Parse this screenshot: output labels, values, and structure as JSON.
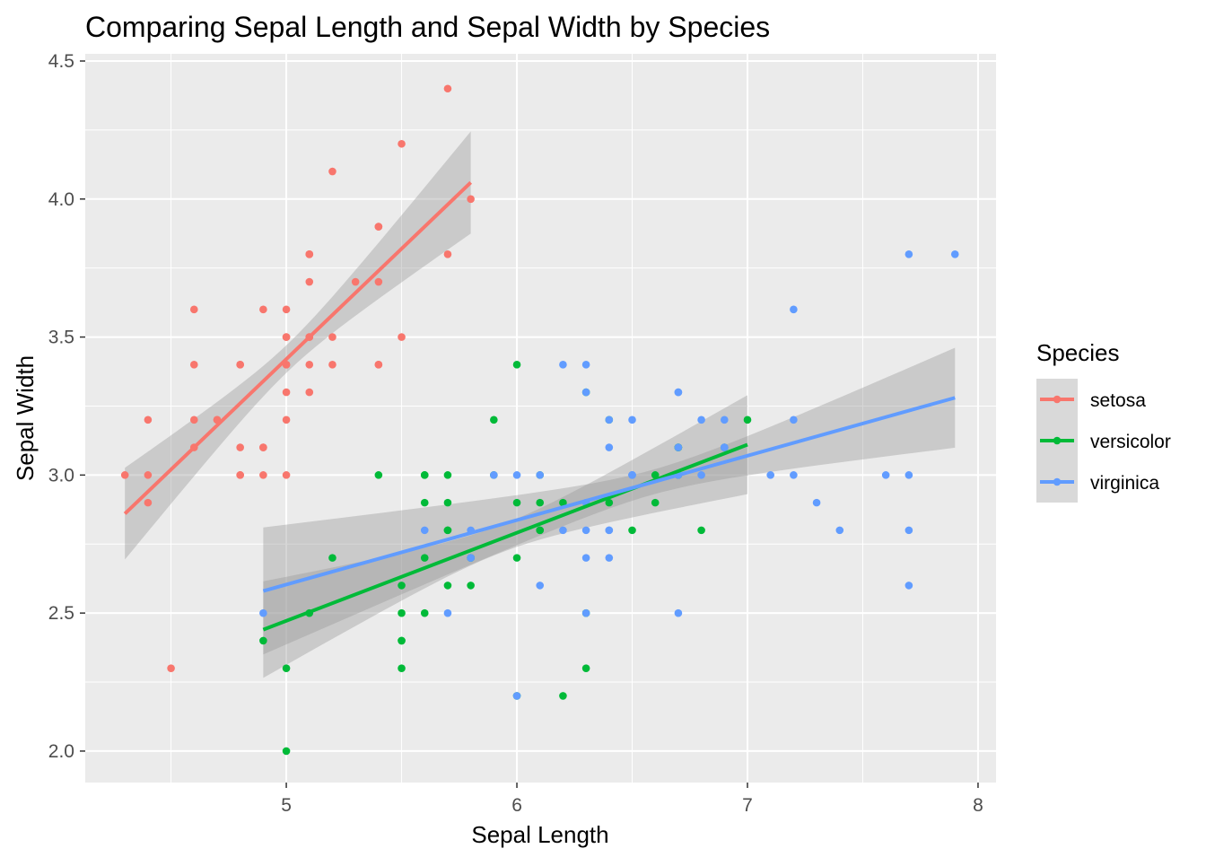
{
  "chart_data": {
    "type": "scatter",
    "title": "Comparing Sepal Length and Sepal Width by Species",
    "xlabel": "Sepal Length",
    "ylabel": "Sepal Width",
    "xlim": [
      4.128,
      8.078
    ],
    "ylim": [
      1.886,
      4.526
    ],
    "x_ticks": [
      5,
      6,
      7,
      8
    ],
    "x_tick_labels": [
      "5",
      "6",
      "7",
      "8"
    ],
    "y_ticks": [
      2.0,
      2.5,
      3.0,
      3.5,
      4.0,
      4.5
    ],
    "y_tick_labels": [
      "2.0",
      "2.5",
      "3.0",
      "3.5",
      "4.0",
      "4.5"
    ],
    "grid": true,
    "legend": {
      "title": "Species",
      "placement": "right"
    },
    "series": [
      {
        "name": "setosa",
        "color": "#F8766D",
        "points": [
          [
            5.1,
            3.5
          ],
          [
            4.9,
            3.0
          ],
          [
            4.7,
            3.2
          ],
          [
            4.6,
            3.1
          ],
          [
            5.0,
            3.6
          ],
          [
            5.4,
            3.9
          ],
          [
            4.6,
            3.4
          ],
          [
            5.0,
            3.4
          ],
          [
            4.4,
            2.9
          ],
          [
            4.9,
            3.1
          ],
          [
            5.4,
            3.7
          ],
          [
            4.8,
            3.4
          ],
          [
            4.8,
            3.0
          ],
          [
            4.3,
            3.0
          ],
          [
            5.8,
            4.0
          ],
          [
            5.7,
            4.4
          ],
          [
            5.4,
            3.9
          ],
          [
            5.1,
            3.5
          ],
          [
            5.7,
            3.8
          ],
          [
            5.1,
            3.8
          ],
          [
            5.4,
            3.4
          ],
          [
            5.1,
            3.7
          ],
          [
            4.6,
            3.6
          ],
          [
            5.1,
            3.3
          ],
          [
            4.8,
            3.4
          ],
          [
            5.0,
            3.0
          ],
          [
            5.0,
            3.4
          ],
          [
            5.2,
            3.5
          ],
          [
            5.2,
            3.4
          ],
          [
            4.7,
            3.2
          ],
          [
            4.8,
            3.1
          ],
          [
            5.4,
            3.4
          ],
          [
            5.2,
            4.1
          ],
          [
            5.5,
            4.2
          ],
          [
            4.9,
            3.1
          ],
          [
            5.0,
            3.2
          ],
          [
            5.5,
            3.5
          ],
          [
            4.9,
            3.6
          ],
          [
            4.4,
            3.0
          ],
          [
            5.1,
            3.4
          ],
          [
            5.0,
            3.5
          ],
          [
            4.5,
            2.3
          ],
          [
            4.4,
            3.2
          ],
          [
            5.0,
            3.5
          ],
          [
            5.1,
            3.8
          ],
          [
            4.8,
            3.0
          ],
          [
            5.1,
            3.8
          ],
          [
            4.6,
            3.2
          ],
          [
            5.3,
            3.7
          ],
          [
            5.0,
            3.3
          ]
        ],
        "fit": {
          "x": [
            4.3,
            5.8
          ],
          "y": [
            2.86,
            4.06
          ],
          "band": {
            "x_mean": 5.006,
            "min_half": 0.05,
            "k": 0.0504
          }
        }
      },
      {
        "name": "versicolor",
        "color": "#00BA38",
        "points": [
          [
            7.0,
            3.2
          ],
          [
            6.4,
            3.2
          ],
          [
            6.9,
            3.1
          ],
          [
            5.5,
            2.3
          ],
          [
            6.5,
            2.8
          ],
          [
            5.7,
            2.8
          ],
          [
            6.3,
            3.3
          ],
          [
            4.9,
            2.4
          ],
          [
            6.6,
            2.9
          ],
          [
            5.2,
            2.7
          ],
          [
            5.0,
            2.0
          ],
          [
            5.9,
            3.0
          ],
          [
            6.0,
            2.2
          ],
          [
            6.1,
            2.9
          ],
          [
            5.6,
            2.9
          ],
          [
            6.7,
            3.1
          ],
          [
            5.6,
            3.0
          ],
          [
            5.8,
            2.7
          ],
          [
            6.2,
            2.2
          ],
          [
            5.6,
            2.5
          ],
          [
            5.9,
            3.2
          ],
          [
            6.1,
            2.8
          ],
          [
            6.3,
            2.5
          ],
          [
            6.1,
            2.8
          ],
          [
            6.4,
            2.9
          ],
          [
            6.6,
            3.0
          ],
          [
            6.8,
            2.8
          ],
          [
            6.7,
            3.0
          ],
          [
            6.0,
            2.9
          ],
          [
            5.7,
            2.6
          ],
          [
            5.5,
            2.4
          ],
          [
            5.5,
            2.4
          ],
          [
            5.8,
            2.7
          ],
          [
            6.0,
            2.7
          ],
          [
            5.4,
            3.0
          ],
          [
            6.0,
            3.4
          ],
          [
            6.7,
            3.1
          ],
          [
            6.3,
            2.3
          ],
          [
            5.6,
            3.0
          ],
          [
            5.5,
            2.5
          ],
          [
            5.5,
            2.6
          ],
          [
            6.1,
            3.0
          ],
          [
            5.8,
            2.6
          ],
          [
            5.0,
            2.3
          ],
          [
            5.6,
            2.7
          ],
          [
            5.7,
            3.0
          ],
          [
            5.7,
            2.9
          ],
          [
            6.2,
            2.9
          ],
          [
            5.1,
            2.5
          ],
          [
            5.7,
            2.8
          ]
        ],
        "fit": {
          "x": [
            4.9,
            7.0
          ],
          "y": [
            2.44,
            3.11
          ],
          "band": {
            "x_mean": 5.936,
            "min_half": 0.05,
            "k": 0.0262
          }
        }
      },
      {
        "name": "virginica",
        "color": "#619CFF",
        "points": [
          [
            6.3,
            3.3
          ],
          [
            5.8,
            2.7
          ],
          [
            7.1,
            3.0
          ],
          [
            6.3,
            2.9
          ],
          [
            6.5,
            3.0
          ],
          [
            7.6,
            3.0
          ],
          [
            4.9,
            2.5
          ],
          [
            7.3,
            2.9
          ],
          [
            6.7,
            2.5
          ],
          [
            7.2,
            3.6
          ],
          [
            6.5,
            3.2
          ],
          [
            6.4,
            2.7
          ],
          [
            6.8,
            3.0
          ],
          [
            5.7,
            2.5
          ],
          [
            5.8,
            2.8
          ],
          [
            6.4,
            3.2
          ],
          [
            6.5,
            3.0
          ],
          [
            7.7,
            3.8
          ],
          [
            7.7,
            2.6
          ],
          [
            6.0,
            2.2
          ],
          [
            6.9,
            3.2
          ],
          [
            5.6,
            2.8
          ],
          [
            7.7,
            2.8
          ],
          [
            6.3,
            2.7
          ],
          [
            6.7,
            3.3
          ],
          [
            7.2,
            3.2
          ],
          [
            6.2,
            2.8
          ],
          [
            6.1,
            3.0
          ],
          [
            6.4,
            2.8
          ],
          [
            7.2,
            3.0
          ],
          [
            7.4,
            2.8
          ],
          [
            7.9,
            3.8
          ],
          [
            6.4,
            2.8
          ],
          [
            6.3,
            2.8
          ],
          [
            6.1,
            2.6
          ],
          [
            7.7,
            3.0
          ],
          [
            6.3,
            3.4
          ],
          [
            6.4,
            3.1
          ],
          [
            6.0,
            3.0
          ],
          [
            6.9,
            3.1
          ],
          [
            6.7,
            3.1
          ],
          [
            6.9,
            3.1
          ],
          [
            5.8,
            2.7
          ],
          [
            6.8,
            3.2
          ],
          [
            6.7,
            3.3
          ],
          [
            6.7,
            3.0
          ],
          [
            6.3,
            2.5
          ],
          [
            6.5,
            3.0
          ],
          [
            6.2,
            3.4
          ],
          [
            5.9,
            3.0
          ]
        ],
        "fit": {
          "x": [
            4.9,
            7.9
          ],
          "y": [
            2.58,
            3.28
          ],
          "band": {
            "x_mean": 6.588,
            "min_half": 0.045,
            "k": 0.01786
          }
        }
      }
    ]
  }
}
